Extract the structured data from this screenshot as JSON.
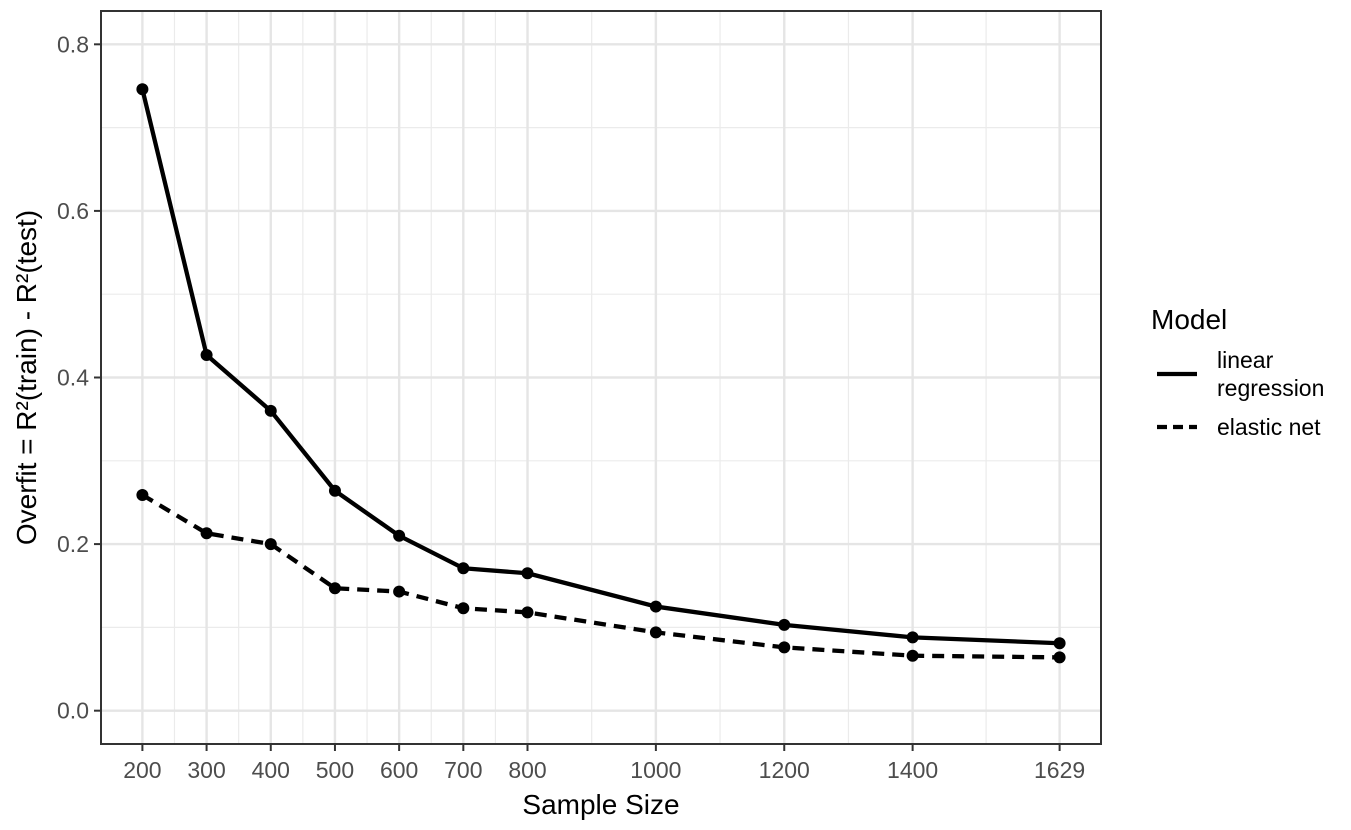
{
  "chart_data": {
    "type": "line",
    "title": "",
    "xlabel": "Sample Size",
    "ylabel": "Overfit = R²(train) - R²(test)",
    "x": [
      200,
      300,
      400,
      500,
      600,
      700,
      800,
      1000,
      1200,
      1400,
      1629
    ],
    "x_tick_labels": [
      "200",
      "300",
      "400",
      "500",
      "600",
      "700",
      "800",
      "1000",
      "1200",
      "1400",
      "1629"
    ],
    "y_ticks": [
      0.0,
      0.2,
      0.4,
      0.6,
      0.8
    ],
    "y_tick_labels": [
      "0.0",
      "0.2",
      "0.4",
      "0.6",
      "0.8"
    ],
    "ylim": [
      -0.04,
      0.84
    ],
    "grid": true,
    "legend_title": "Model",
    "legend_position": "right",
    "series": [
      {
        "name": "linear regression",
        "label_lines": [
          "linear",
          "regression"
        ],
        "line_style": "solid",
        "color": "#000000",
        "values": [
          0.746,
          0.427,
          0.36,
          0.264,
          0.21,
          0.171,
          0.165,
          0.125,
          0.103,
          0.088,
          0.081
        ]
      },
      {
        "name": "elastic net",
        "label_lines": [
          "elastic net"
        ],
        "line_style": "dashed",
        "color": "#000000",
        "values": [
          0.259,
          0.213,
          0.2,
          0.147,
          0.143,
          0.123,
          0.118,
          0.094,
          0.076,
          0.066,
          0.064
        ]
      }
    ]
  }
}
